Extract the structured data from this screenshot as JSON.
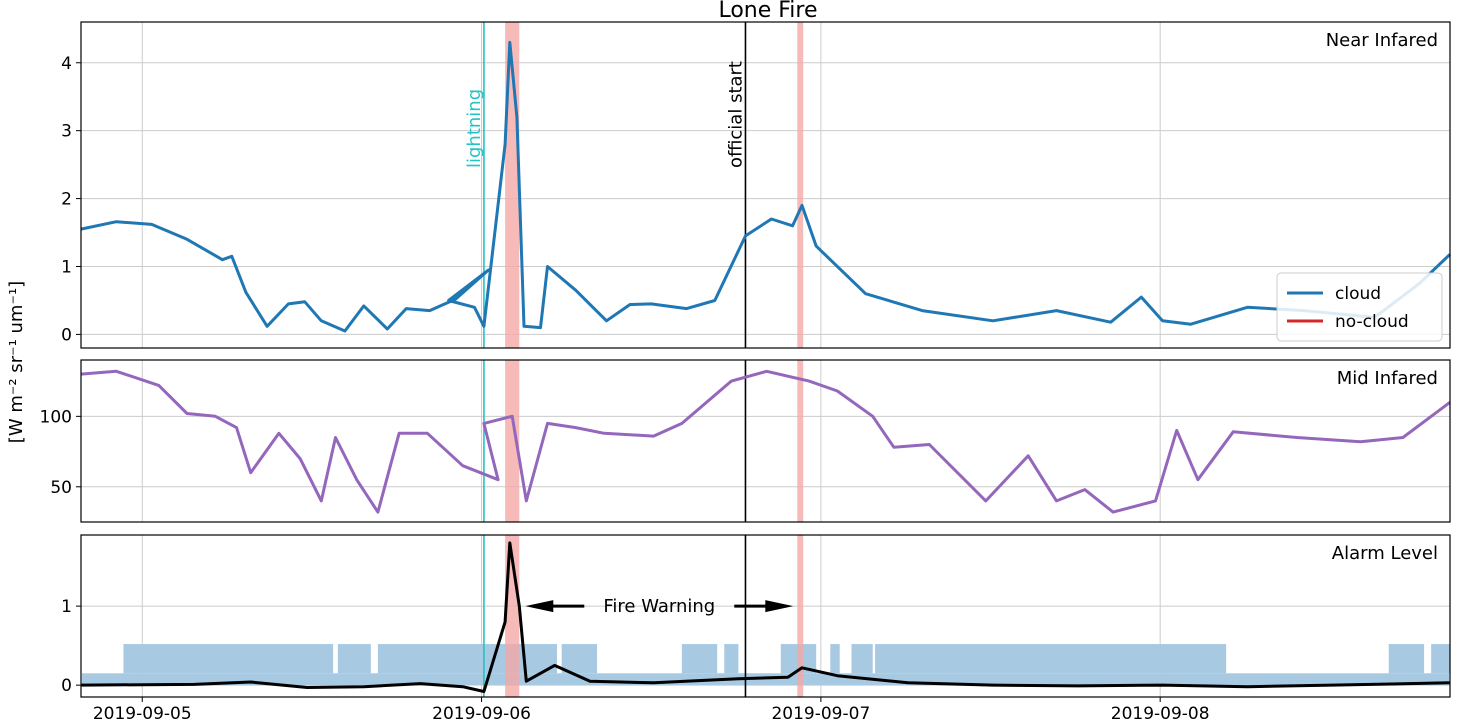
{
  "chart_data": {
    "type": "line",
    "title": "Lone Fire",
    "ylabel": "[W m⁻² sr⁻¹ um⁻¹]",
    "x_ticks": [
      "2019-09-05",
      "2019-09-06",
      "2019-09-07",
      "2019-09-08"
    ],
    "x_range": [
      "2019-09-04 19:40",
      "2019-09-08 20:30"
    ],
    "grid": true,
    "events": [
      {
        "label": "lightning",
        "time": "2019-09-06 00:10",
        "color": "#22c4c4"
      },
      {
        "label": "official start",
        "time": "2019-09-06 18:40",
        "color": "#000000"
      }
    ],
    "highlight_windows": [
      {
        "start": "2019-09-06 01:40",
        "end": "2019-09-06 02:40",
        "color": "#f4a9a8"
      },
      {
        "start": "2019-09-06 22:20",
        "end": "2019-09-06 22:45",
        "color": "#f4a9a8"
      }
    ],
    "panels": [
      {
        "label": "Near Infared",
        "ylim": [
          -0.2,
          4.6
        ],
        "yticks": [
          0,
          1,
          2,
          3,
          4
        ],
        "legend": {
          "placement": "lower-right",
          "entries": [
            {
              "name": "cloud",
              "color": "#1f77b4"
            },
            {
              "name": "no-cloud",
              "color": "#d62728"
            }
          ]
        },
        "series": [
          {
            "color": "#1f77b4",
            "points": [
              [
                "2019-09-04 19:40",
                1.55
              ],
              [
                "2019-09-04 22:10",
                1.66
              ],
              [
                "2019-09-05 00:40",
                1.62
              ],
              [
                "2019-09-05 03:10",
                1.4
              ],
              [
                "2019-09-05 05:40",
                1.1
              ],
              [
                "2019-09-05 06:20",
                1.15
              ],
              [
                "2019-09-05 07:20",
                0.62
              ],
              [
                "2019-09-05 08:50",
                0.12
              ],
              [
                "2019-09-05 10:20",
                0.45
              ],
              [
                "2019-09-05 11:30",
                0.48
              ],
              [
                "2019-09-05 12:40",
                0.2
              ],
              [
                "2019-09-05 14:20",
                0.05
              ],
              [
                "2019-09-05 15:40",
                0.42
              ],
              [
                "2019-09-05 17:20",
                0.08
              ],
              [
                "2019-09-05 18:40",
                0.38
              ],
              [
                "2019-09-05 20:20",
                0.35
              ],
              [
                "2019-09-05 22:10",
                0.52
              ],
              [
                "2019-09-06 00:30",
                0.95
              ],
              [
                "2019-09-05 21:40",
                0.5
              ],
              [
                "2019-09-05 23:30",
                0.4
              ],
              [
                "2019-09-06 00:10",
                0.12
              ],
              [
                "2019-09-06 01:40",
                2.8
              ],
              [
                "2019-09-06 02:00",
                4.3
              ],
              [
                "2019-09-06 02:30",
                3.2
              ],
              [
                "2019-09-06 03:00",
                0.12
              ],
              [
                "2019-09-06 04:10",
                0.1
              ],
              [
                "2019-09-06 04:40",
                1.0
              ],
              [
                "2019-09-06 06:40",
                0.65
              ],
              [
                "2019-09-06 08:50",
                0.2
              ],
              [
                "2019-09-06 10:30",
                0.44
              ],
              [
                "2019-09-06 12:00",
                0.45
              ],
              [
                "2019-09-06 14:30",
                0.38
              ],
              [
                "2019-09-06 16:30",
                0.5
              ],
              [
                "2019-09-06 18:40",
                1.45
              ],
              [
                "2019-09-06 20:30",
                1.7
              ],
              [
                "2019-09-06 22:00",
                1.6
              ],
              [
                "2019-09-06 22:40",
                1.9
              ],
              [
                "2019-09-06 23:40",
                1.3
              ],
              [
                "2019-09-07 03:10",
                0.6
              ],
              [
                "2019-09-07 07:10",
                0.35
              ],
              [
                "2019-09-07 12:10",
                0.2
              ],
              [
                "2019-09-07 16:40",
                0.35
              ],
              [
                "2019-09-07 20:30",
                0.18
              ],
              [
                "2019-09-07 22:40",
                0.55
              ],
              [
                "2019-09-08 00:10",
                0.2
              ],
              [
                "2019-09-08 02:10",
                0.15
              ],
              [
                "2019-09-08 06:10",
                0.4
              ],
              [
                "2019-09-08 10:10",
                0.35
              ],
              [
                "2019-09-08 15:10",
                0.25
              ],
              [
                "2019-09-08 18:20",
                0.75
              ],
              [
                "2019-09-08 20:30",
                1.18
              ]
            ]
          }
        ]
      },
      {
        "label": "Mid Infared",
        "ylim": [
          25,
          140
        ],
        "yticks": [
          50,
          100
        ],
        "series": [
          {
            "color": "#9467bd",
            "points": [
              [
                "2019-09-04 19:40",
                130
              ],
              [
                "2019-09-04 22:10",
                132
              ],
              [
                "2019-09-05 01:10",
                122
              ],
              [
                "2019-09-05 03:10",
                102
              ],
              [
                "2019-09-05 05:10",
                100
              ],
              [
                "2019-09-05 06:40",
                92
              ],
              [
                "2019-09-05 07:40",
                60
              ],
              [
                "2019-09-05 09:40",
                88
              ],
              [
                "2019-09-05 11:10",
                70
              ],
              [
                "2019-09-05 12:40",
                40
              ],
              [
                "2019-09-05 13:40",
                85
              ],
              [
                "2019-09-05 15:10",
                55
              ],
              [
                "2019-09-05 16:40",
                32
              ],
              [
                "2019-09-05 18:10",
                88
              ],
              [
                "2019-09-05 20:10",
                88
              ],
              [
                "2019-09-05 22:40",
                65
              ],
              [
                "2019-09-06 01:10",
                55
              ],
              [
                "2019-09-06 00:10",
                95
              ],
              [
                "2019-09-06 02:10",
                100
              ],
              [
                "2019-09-06 03:10",
                40
              ],
              [
                "2019-09-06 04:40",
                95
              ],
              [
                "2019-09-06 06:40",
                92
              ],
              [
                "2019-09-06 08:40",
                88
              ],
              [
                "2019-09-06 12:10",
                86
              ],
              [
                "2019-09-06 14:10",
                95
              ],
              [
                "2019-09-06 17:40",
                125
              ],
              [
                "2019-09-06 20:10",
                132
              ],
              [
                "2019-09-06 23:10",
                125
              ],
              [
                "2019-09-07 01:10",
                118
              ],
              [
                "2019-09-07 03:40",
                100
              ],
              [
                "2019-09-07 05:10",
                78
              ],
              [
                "2019-09-07 07:40",
                80
              ],
              [
                "2019-09-07 09:40",
                60
              ],
              [
                "2019-09-07 11:40",
                40
              ],
              [
                "2019-09-07 14:40",
                72
              ],
              [
                "2019-09-07 16:40",
                40
              ],
              [
                "2019-09-07 18:40",
                48
              ],
              [
                "2019-09-07 20:40",
                32
              ],
              [
                "2019-09-07 23:40",
                40
              ],
              [
                "2019-09-08 01:10",
                90
              ],
              [
                "2019-09-08 02:40",
                55
              ],
              [
                "2019-09-08 05:10",
                89
              ],
              [
                "2019-09-08 09:40",
                85
              ],
              [
                "2019-09-08 14:10",
                82
              ],
              [
                "2019-09-08 17:10",
                85
              ],
              [
                "2019-09-08 20:30",
                110
              ]
            ]
          }
        ]
      },
      {
        "label": "Alarm Level",
        "ylim": [
          -0.15,
          1.9
        ],
        "yticks": [
          0,
          1
        ],
        "annotation": {
          "text": "Fire Warning",
          "from": "2019-09-06 02:40",
          "to": "2019-09-06 22:20",
          "y": 1.0
        },
        "series": [
          {
            "color": "#000000",
            "points": [
              [
                "2019-09-04 19:40",
                0.0
              ],
              [
                "2019-09-05 03:40",
                0.01
              ],
              [
                "2019-09-05 07:40",
                0.04
              ],
              [
                "2019-09-05 11:40",
                -0.03
              ],
              [
                "2019-09-05 15:40",
                -0.02
              ],
              [
                "2019-09-05 19:40",
                0.02
              ],
              [
                "2019-09-05 22:40",
                -0.02
              ],
              [
                "2019-09-06 00:10",
                -0.08
              ],
              [
                "2019-09-06 01:40",
                0.8
              ],
              [
                "2019-09-06 02:00",
                1.8
              ],
              [
                "2019-09-06 02:40",
                1.0
              ],
              [
                "2019-09-06 03:10",
                0.05
              ],
              [
                "2019-09-06 05:10",
                0.25
              ],
              [
                "2019-09-06 07:40",
                0.05
              ],
              [
                "2019-09-06 12:10",
                0.03
              ],
              [
                "2019-09-06 18:10",
                0.08
              ],
              [
                "2019-09-06 21:40",
                0.1
              ],
              [
                "2019-09-06 22:40",
                0.22
              ],
              [
                "2019-09-07 01:10",
                0.12
              ],
              [
                "2019-09-07 06:10",
                0.03
              ],
              [
                "2019-09-07 12:10",
                0.0
              ],
              [
                "2019-09-07 18:10",
                -0.01
              ],
              [
                "2019-09-08 00:10",
                0.0
              ],
              [
                "2019-09-08 06:10",
                -0.02
              ],
              [
                "2019-09-08 12:10",
                0.0
              ],
              [
                "2019-09-08 20:30",
                0.03
              ]
            ]
          }
        ],
        "bands": {
          "color": "#a7c9e2",
          "levels": [
            0.15,
            0.52
          ],
          "high_intervals": [
            [
              "2019-09-04 22:40",
              "2019-09-05 13:30"
            ],
            [
              "2019-09-05 13:50",
              "2019-09-05 16:10"
            ],
            [
              "2019-09-05 16:40",
              "2019-09-06 05:20"
            ],
            [
              "2019-09-06 05:40",
              "2019-09-06 08:10"
            ],
            [
              "2019-09-06 14:10",
              "2019-09-06 16:40"
            ],
            [
              "2019-09-06 17:10",
              "2019-09-06 18:10"
            ],
            [
              "2019-09-06 21:10",
              "2019-09-06 23:40"
            ],
            [
              "2019-09-07 00:40",
              "2019-09-07 01:20"
            ],
            [
              "2019-09-07 02:10",
              "2019-09-07 03:40"
            ],
            [
              "2019-09-07 03:50",
              "2019-09-08 04:40"
            ],
            [
              "2019-09-08 16:10",
              "2019-09-08 18:40"
            ],
            [
              "2019-09-08 19:10",
              "2019-09-08 20:30"
            ]
          ]
        }
      }
    ]
  }
}
